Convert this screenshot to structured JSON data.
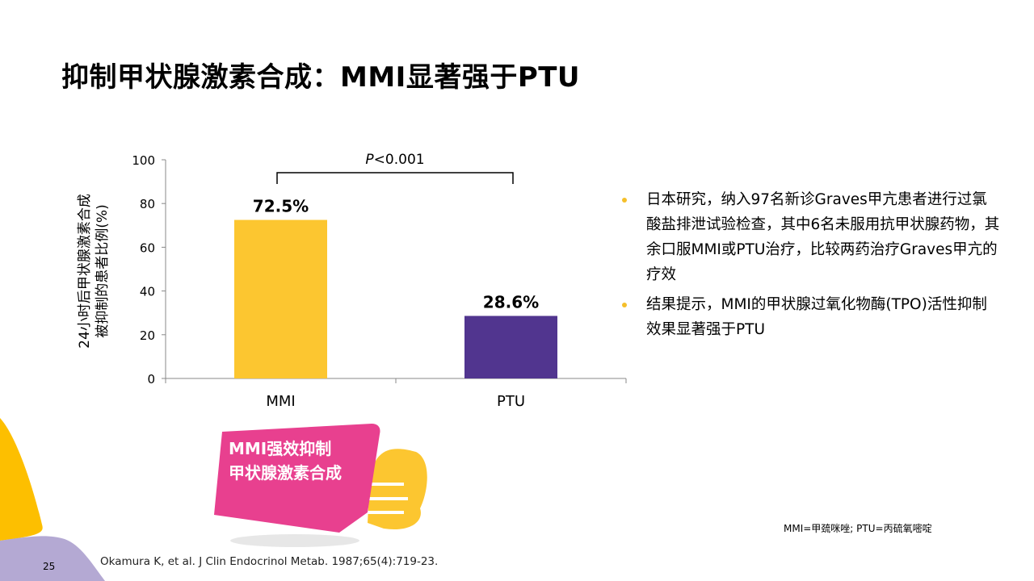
{
  "title": "抑制甲状腺激素合成：MMI显著强于PTU",
  "chart_data": {
    "type": "bar",
    "categories": [
      "MMI",
      "PTU"
    ],
    "values": [
      72.5,
      28.6
    ],
    "data_labels": [
      "72.5%",
      "28.6%"
    ],
    "ylabel": "24小时后甲状腺激素合成被抑制的患者比例(%)",
    "ylabel_lines": [
      "24小时后甲状腺激素合成",
      "被抑制的患者比例(%)"
    ],
    "ylim": [
      0,
      100
    ],
    "yticks": [
      "0",
      "20",
      "40",
      "60",
      "80",
      "100"
    ],
    "colors": [
      "#fcc630",
      "#51358f"
    ],
    "annotation": {
      "italic": "P",
      "text": "<0.001"
    },
    "grid": false
  },
  "bullets": [
    "日本研究，纳入97名新诊Graves甲亢患者进行过氯酸盐排泄试验检查，其中6名未服用抗甲状腺药物，其余口服MMI或PTU治疗，比较两药治疗Graves甲亢的疗效",
    "结果提示，MMI的甲状腺过氧化物酶(TPO)活性抑制效果显著强于PTU"
  ],
  "callout": {
    "line1": "MMI强效抑制",
    "line2": "甲状腺激素合成",
    "color": "#e8408f"
  },
  "abbreviations": "MMI=甲巯咪唑; PTU=丙硫氧嘧啶",
  "reference": "Okamura K, et al. J Clin Endocrinol Metab. 1987;65(4):719-23.",
  "page_number": "25"
}
